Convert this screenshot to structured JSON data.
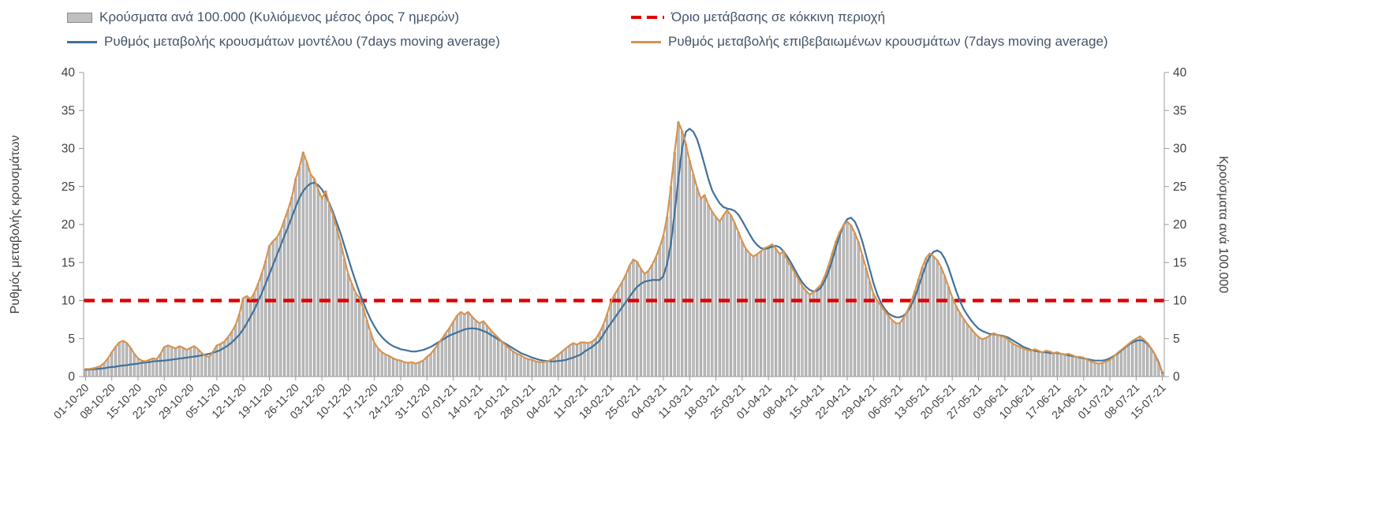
{
  "chart_data": {
    "type": "combo",
    "title": "",
    "grid": false,
    "legend_position": "top",
    "x_tick_interval_days": 7,
    "x_tick_labels": [
      "01-10-20",
      "08-10-20",
      "15-10-20",
      "22-10-20",
      "29-10-20",
      "05-11-20",
      "12-11-20",
      "19-11-20",
      "26-11-20",
      "03-12-20",
      "10-12-20",
      "17-12-20",
      "24-12-20",
      "31-12-20",
      "07-01-21",
      "14-01-21",
      "21-01-21",
      "28-01-21",
      "04-02-21",
      "11-02-21",
      "18-02-21",
      "25-02-21",
      "04-03-21",
      "11-03-21",
      "18-03-21",
      "25-03-21",
      "01-04-21",
      "08-04-21",
      "15-04-21",
      "22-04-21",
      "29-04-21",
      "06-05-21",
      "13-05-21",
      "20-05-21",
      "27-05-21",
      "03-06-21",
      "10-06-21",
      "17-06-21",
      "24-06-21",
      "01-07-21",
      "08-07-21",
      "15-07-21"
    ],
    "ylim": [
      0,
      40
    ],
    "yticks": [
      0,
      5,
      10,
      15,
      20,
      25,
      30,
      35,
      40
    ],
    "ylabel_left": "Ρυθμός μεταβολής κρουσμάτων",
    "ylabel_right": "Κρούσματα ανά 100.000",
    "threshold": {
      "label": "Όριο μετάβασης σε κόκκινη περιοχή",
      "value": 10,
      "color": "#e00000",
      "style": "dashed"
    },
    "axis_color": "#9c9c9c",
    "tick_text_color": "#404040",
    "series": [
      {
        "name": "Κρούσματα ανά 100.000 (Κυλιόμενος μέσος όρος 7 ημερών)",
        "type": "bar",
        "axis": "right",
        "color": "#bfbfbf",
        "stroke": "#8c8c8c",
        "values": [
          1.0,
          1.0,
          1.1,
          1.2,
          1.4,
          1.8,
          2.4,
          3.2,
          3.9,
          4.5,
          4.7,
          4.4,
          3.8,
          3.0,
          2.4,
          2.1,
          2.0,
          2.2,
          2.4,
          2.3,
          3.0,
          3.9,
          4.1,
          3.9,
          3.7,
          4.0,
          3.8,
          3.5,
          3.8,
          4.0,
          3.6,
          3.1,
          2.7,
          2.6,
          3.3,
          4.1,
          4.3,
          4.6,
          5.2,
          5.9,
          6.8,
          8.2,
          10.3,
          10.6,
          10.2,
          11.0,
          12.2,
          13.6,
          15.2,
          17.2,
          17.8,
          18.3,
          19.2,
          20.6,
          22.0,
          23.6,
          26.0,
          27.5,
          29.5,
          28.2,
          26.6,
          26.0,
          24.6,
          23.4,
          24.4,
          22.6,
          21.2,
          19.4,
          17.6,
          15.5,
          13.5,
          12.2,
          11.0,
          10.4,
          9.0,
          7.4,
          5.8,
          4.4,
          3.7,
          3.2,
          2.9,
          2.7,
          2.4,
          2.2,
          2.1,
          1.9,
          1.8,
          1.9,
          1.7,
          1.9,
          2.1,
          2.6,
          3.0,
          3.6,
          4.3,
          5.0,
          5.7,
          6.4,
          7.2,
          8.0,
          8.5,
          8.2,
          8.5,
          7.9,
          7.4,
          7.0,
          7.3,
          6.7,
          6.1,
          5.6,
          5.1,
          4.6,
          4.1,
          3.7,
          3.3,
          3.0,
          2.8,
          2.5,
          2.3,
          2.2,
          2.0,
          1.9,
          1.9,
          2.0,
          2.2,
          2.5,
          2.9,
          3.3,
          3.7,
          4.1,
          4.4,
          4.2,
          4.5,
          4.5,
          4.4,
          4.6,
          5.0,
          5.8,
          6.8,
          8.2,
          9.8,
          10.8,
          11.6,
          12.4,
          13.4,
          14.6,
          15.4,
          15.1,
          14.2,
          13.5,
          13.9,
          14.7,
          15.7,
          17.0,
          18.5,
          21.0,
          25.0,
          29.5,
          33.5,
          32.3,
          30.6,
          28.4,
          26.6,
          24.8,
          23.4,
          23.9,
          22.6,
          21.7,
          21.0,
          20.4,
          21.2,
          21.9,
          21.2,
          20.2,
          19.0,
          17.8,
          16.8,
          16.2,
          15.8,
          16.1,
          16.5,
          16.9,
          17.1,
          17.4,
          16.8,
          16.1,
          16.5,
          15.3,
          14.5,
          13.7,
          12.8,
          11.9,
          11.3,
          10.8,
          11.1,
          11.6,
          12.1,
          13.2,
          14.6,
          16.2,
          17.8,
          19.0,
          19.9,
          20.4,
          19.9,
          18.9,
          17.7,
          16.0,
          14.3,
          12.5,
          10.9,
          10.0,
          9.3,
          8.6,
          8.0,
          7.4,
          7.0,
          7.0,
          7.7,
          8.6,
          9.8,
          11.2,
          12.8,
          14.4,
          15.6,
          16.2,
          15.8,
          15.3,
          14.4,
          13.2,
          11.8,
          10.4,
          9.3,
          8.4,
          7.6,
          6.9,
          6.3,
          5.7,
          5.2,
          4.9,
          5.1,
          5.4,
          5.7,
          5.5,
          5.3,
          5.2,
          4.8,
          4.4,
          4.1,
          3.9,
          3.7,
          3.5,
          3.4,
          3.6,
          3.4,
          3.2,
          3.4,
          3.3,
          3.1,
          3.2,
          3.0,
          2.9,
          3.0,
          2.8,
          2.6,
          2.6,
          2.5,
          2.2,
          2.0,
          1.8,
          1.7,
          1.8,
          2.0,
          2.2,
          2.6,
          3.1,
          3.5,
          3.9,
          4.3,
          4.7,
          5.0,
          5.3,
          4.9,
          4.4,
          3.7,
          2.9,
          1.7,
          0.6
        ]
      },
      {
        "name": "Ρυθμός μεταβολής κρουσμάτων μοντέλου (7days moving average)",
        "type": "line",
        "axis": "left",
        "color": "#41719c",
        "values": [
          0.9,
          0.93,
          0.97,
          1.0,
          1.05,
          1.1,
          1.2,
          1.25,
          1.3,
          1.4,
          1.45,
          1.5,
          1.6,
          1.65,
          1.7,
          1.8,
          1.85,
          1.9,
          2.0,
          2.03,
          2.07,
          2.1,
          2.17,
          2.23,
          2.3,
          2.37,
          2.43,
          2.5,
          2.57,
          2.63,
          2.7,
          2.8,
          2.9,
          3.0,
          3.15,
          3.3,
          3.5,
          3.8,
          4.1,
          4.5,
          5.0,
          5.5,
          6.2,
          7.0,
          7.9,
          8.8,
          9.9,
          11.0,
          12.2,
          13.5,
          14.7,
          16.0,
          17.2,
          18.5,
          19.7,
          21.0,
          22.3,
          23.5,
          24.4,
          25.0,
          25.4,
          25.5,
          25.2,
          24.6,
          23.8,
          22.8,
          21.6,
          20.2,
          18.8,
          17.2,
          15.6,
          14.0,
          12.5,
          11.1,
          9.8,
          8.6,
          7.5,
          6.6,
          5.8,
          5.2,
          4.7,
          4.3,
          4.0,
          3.8,
          3.6,
          3.5,
          3.4,
          3.3,
          3.3,
          3.4,
          3.5,
          3.7,
          3.9,
          4.2,
          4.5,
          4.8,
          5.1,
          5.4,
          5.6,
          5.8,
          6.0,
          6.2,
          6.3,
          6.35,
          6.3,
          6.2,
          6.0,
          5.8,
          5.5,
          5.2,
          4.9,
          4.6,
          4.3,
          4.0,
          3.7,
          3.4,
          3.1,
          2.9,
          2.7,
          2.5,
          2.35,
          2.2,
          2.1,
          2.05,
          2.0,
          2.0,
          2.05,
          2.1,
          2.2,
          2.35,
          2.5,
          2.7,
          2.9,
          3.3,
          3.6,
          3.9,
          4.3,
          4.7,
          5.5,
          6.3,
          7.0,
          7.7,
          8.4,
          9.1,
          9.8,
          10.5,
          11.2,
          11.8,
          12.2,
          12.5,
          12.6,
          12.7,
          12.7,
          12.7,
          13.2,
          14.8,
          17.5,
          21.5,
          26.0,
          30.0,
          32.2,
          32.6,
          32.2,
          31.2,
          29.6,
          27.8,
          26.0,
          24.5,
          23.6,
          22.8,
          22.3,
          22.1,
          22.0,
          21.8,
          21.3,
          20.5,
          19.6,
          18.7,
          17.9,
          17.3,
          16.9,
          16.8,
          16.9,
          17.1,
          17.2,
          17.0,
          16.5,
          15.8,
          15.0,
          14.1,
          13.2,
          12.4,
          11.8,
          11.4,
          11.2,
          11.3,
          11.7,
          12.6,
          13.8,
          15.3,
          17.0,
          18.6,
          19.9,
          20.7,
          20.9,
          20.4,
          19.3,
          17.8,
          16.0,
          14.1,
          12.3,
          10.8,
          9.7,
          8.9,
          8.3,
          8.0,
          7.8,
          7.8,
          8.0,
          8.5,
          9.3,
          10.4,
          11.8,
          13.3,
          14.7,
          15.8,
          16.4,
          16.6,
          16.3,
          15.5,
          14.3,
          12.8,
          11.3,
          10.0,
          8.9,
          8.1,
          7.4,
          6.8,
          6.3,
          6.0,
          5.8,
          5.6,
          5.6,
          5.5,
          5.4,
          5.3,
          5.1,
          4.8,
          4.5,
          4.2,
          3.9,
          3.7,
          3.5,
          3.4,
          3.3,
          3.2,
          3.2,
          3.1,
          3.1,
          3.1,
          3.0,
          2.9,
          2.8,
          2.7,
          2.6,
          2.5,
          2.4,
          2.3,
          2.2,
          2.1,
          2.1,
          2.1,
          2.2,
          2.4,
          2.7,
          3.0,
          3.4,
          3.8,
          4.2,
          4.5,
          4.7,
          4.8,
          4.7,
          4.3,
          3.7,
          2.9,
          1.9,
          0.5
        ]
      },
      {
        "name": "Ρυθμός μεταβολής επιβεβαιωμένων κρουσμάτων (7days moving average)",
        "type": "line",
        "axis": "left",
        "color": "#d79350",
        "values": [
          1.0,
          1.0,
          1.1,
          1.2,
          1.4,
          1.8,
          2.4,
          3.2,
          3.9,
          4.5,
          4.7,
          4.4,
          3.8,
          3.0,
          2.4,
          2.1,
          2.0,
          2.2,
          2.4,
          2.3,
          3.0,
          3.9,
          4.1,
          3.9,
          3.7,
          4.0,
          3.8,
          3.5,
          3.8,
          4.0,
          3.6,
          3.1,
          2.7,
          2.6,
          3.3,
          4.1,
          4.3,
          4.6,
          5.2,
          5.9,
          6.8,
          8.2,
          10.3,
          10.6,
          10.2,
          11.0,
          12.2,
          13.6,
          15.2,
          17.2,
          17.8,
          18.3,
          19.2,
          20.6,
          22.0,
          23.6,
          26.0,
          27.5,
          29.5,
          28.2,
          26.6,
          26.0,
          24.6,
          23.4,
          24.4,
          22.6,
          21.2,
          19.4,
          17.6,
          15.5,
          13.5,
          12.2,
          11.0,
          10.4,
          9.0,
          7.4,
          5.8,
          4.4,
          3.7,
          3.2,
          2.9,
          2.7,
          2.4,
          2.2,
          2.1,
          1.9,
          1.8,
          1.9,
          1.7,
          1.9,
          2.1,
          2.6,
          3.0,
          3.6,
          4.3,
          5.0,
          5.7,
          6.4,
          7.2,
          8.0,
          8.5,
          8.2,
          8.5,
          7.9,
          7.4,
          7.0,
          7.3,
          6.7,
          6.1,
          5.6,
          5.1,
          4.6,
          4.1,
          3.7,
          3.3,
          3.0,
          2.8,
          2.5,
          2.3,
          2.2,
          2.0,
          1.9,
          1.9,
          2.0,
          2.2,
          2.5,
          2.9,
          3.3,
          3.7,
          4.1,
          4.4,
          4.2,
          4.5,
          4.5,
          4.4,
          4.6,
          5.0,
          5.8,
          6.8,
          8.2,
          9.8,
          10.8,
          11.6,
          12.4,
          13.4,
          14.6,
          15.4,
          15.1,
          14.2,
          13.5,
          13.9,
          14.7,
          15.7,
          17.0,
          18.5,
          21.0,
          25.0,
          29.5,
          33.5,
          32.3,
          30.6,
          28.4,
          26.6,
          24.8,
          23.4,
          23.9,
          22.6,
          21.7,
          21.0,
          20.4,
          21.2,
          21.9,
          21.2,
          20.2,
          19.0,
          17.8,
          16.8,
          16.2,
          15.8,
          16.1,
          16.5,
          16.9,
          17.1,
          17.4,
          16.8,
          16.1,
          16.5,
          15.3,
          14.5,
          13.7,
          12.8,
          11.9,
          11.3,
          10.8,
          11.1,
          11.6,
          12.1,
          13.2,
          14.6,
          16.2,
          17.8,
          19.0,
          19.9,
          20.4,
          19.9,
          18.9,
          17.7,
          16.0,
          14.3,
          12.5,
          10.9,
          10.0,
          9.3,
          8.6,
          8.0,
          7.4,
          7.0,
          7.0,
          7.7,
          8.6,
          9.8,
          11.2,
          12.8,
          14.4,
          15.6,
          16.2,
          15.8,
          15.3,
          14.4,
          13.2,
          11.8,
          10.4,
          9.3,
          8.4,
          7.6,
          6.9,
          6.3,
          5.7,
          5.2,
          4.9,
          5.1,
          5.4,
          5.7,
          5.5,
          5.3,
          5.2,
          4.8,
          4.4,
          4.1,
          3.9,
          3.7,
          3.5,
          3.4,
          3.6,
          3.4,
          3.2,
          3.4,
          3.3,
          3.1,
          3.2,
          3.0,
          2.9,
          3.0,
          2.8,
          2.6,
          2.6,
          2.5,
          2.2,
          2.0,
          1.8,
          1.7,
          1.8,
          2.0,
          2.2,
          2.6,
          3.1,
          3.5,
          3.9,
          4.3,
          4.7,
          5.0,
          5.3,
          4.9,
          4.4,
          3.7,
          2.9,
          1.7,
          0.6
        ]
      }
    ]
  }
}
